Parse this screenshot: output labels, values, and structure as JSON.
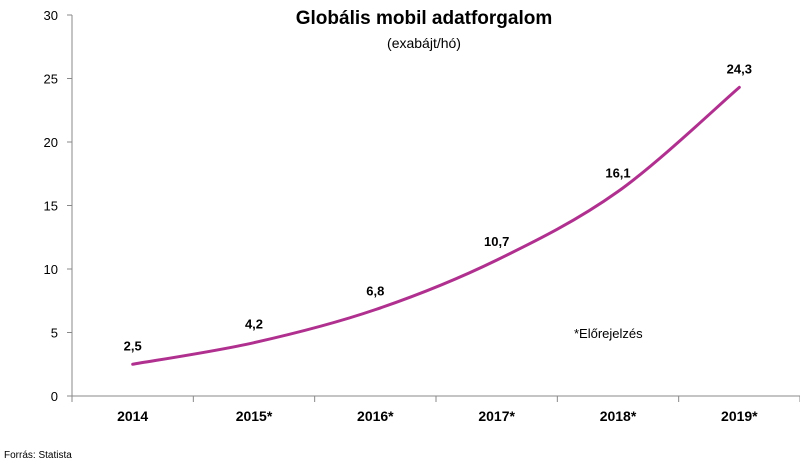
{
  "chart_data": {
    "type": "line",
    "title": "Globális mobil adatforgalom",
    "subtitle": "(exabájt/hó)",
    "categories": [
      "2014",
      "2015*",
      "2016*",
      "2017*",
      "2018*",
      "2019*"
    ],
    "series": [
      {
        "values": [
          2.5,
          4.2,
          6.8,
          10.7,
          16.1,
          24.3
        ],
        "labels": [
          "2,5",
          "4,2",
          "6,8",
          "10,7",
          "16,1",
          "24,3"
        ]
      }
    ],
    "y_ticks": [
      "0",
      "5",
      "10",
      "15",
      "20",
      "25",
      "30"
    ],
    "ylim": [
      0,
      30
    ],
    "grid": false,
    "line_color": "#b0308f",
    "annotation": "*Előrejelzés"
  },
  "source": "Forrás: Statista"
}
